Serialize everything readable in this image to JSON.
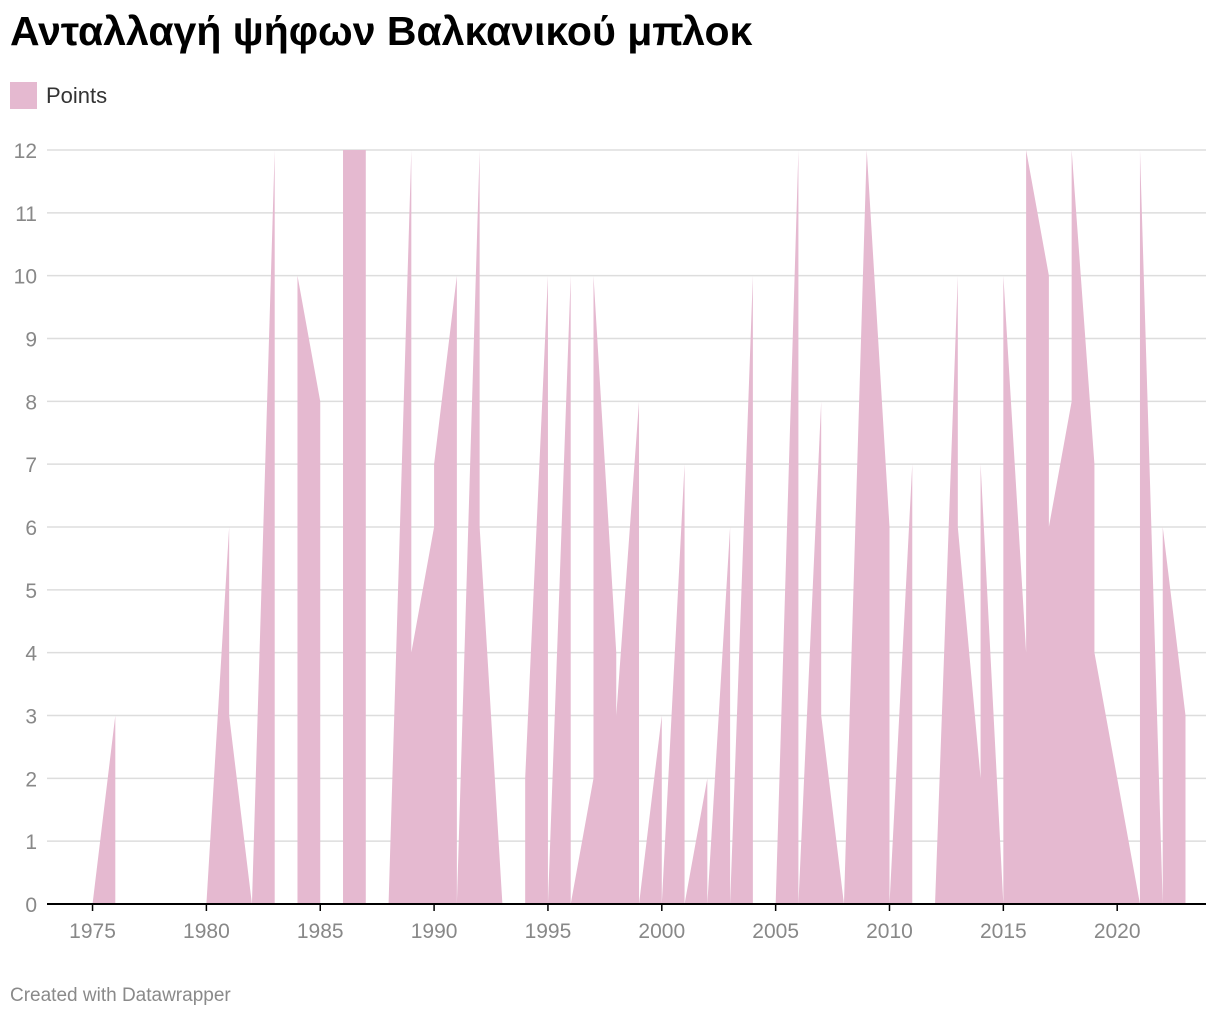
{
  "title": "Ανταλλαγή ψήφων Βαλκανικού μπλοκ",
  "footer": "Created with Datawrapper",
  "legend": {
    "label": "Points"
  },
  "colors": {
    "area": "#e5b9d0",
    "grid": "#dddddd",
    "axis": "#000000",
    "tick": "#888888"
  },
  "chart_data": {
    "type": "area",
    "title": "Ανταλλαγή ψήφων Βαλκανικού μπλοκ",
    "xlabel": "",
    "ylabel": "",
    "xlim": [
      1973,
      2023.9
    ],
    "ylim": [
      0,
      12
    ],
    "x_ticks": [
      1975,
      1980,
      1985,
      1990,
      1995,
      2000,
      2005,
      2010,
      2015,
      2020
    ],
    "y_ticks": [
      0,
      1,
      2,
      3,
      4,
      5,
      6,
      7,
      8,
      9,
      10,
      11,
      12
    ],
    "grid": true,
    "legend_position": "top-left",
    "series": [
      {
        "name": "Points",
        "points": [
          [
            1975,
            0
          ],
          [
            1976,
            3
          ],
          [
            1976,
            0
          ],
          [
            1980,
            0
          ],
          [
            1981,
            6
          ],
          [
            1981,
            3
          ],
          [
            1982,
            0
          ],
          [
            1983,
            12
          ],
          [
            1983,
            0
          ],
          [
            1984,
            0
          ],
          [
            1984,
            10
          ],
          [
            1985,
            8
          ],
          [
            1985,
            0
          ],
          [
            1986,
            0
          ],
          [
            1986,
            12
          ],
          [
            1987,
            12
          ],
          [
            1987,
            0
          ],
          [
            1988,
            0
          ],
          [
            1989,
            12
          ],
          [
            1989,
            4
          ],
          [
            1990,
            6
          ],
          [
            1990,
            7
          ],
          [
            1991,
            10
          ],
          [
            1991,
            0
          ],
          [
            1992,
            12
          ],
          [
            1992,
            6
          ],
          [
            1993,
            0
          ],
          [
            1994,
            0
          ],
          [
            1994,
            2
          ],
          [
            1995,
            10
          ],
          [
            1995,
            0
          ],
          [
            1996,
            10
          ],
          [
            1996,
            0
          ],
          [
            1997,
            2
          ],
          [
            1997,
            10
          ],
          [
            1998,
            4
          ],
          [
            1998,
            3
          ],
          [
            1999,
            8
          ],
          [
            1999,
            0
          ],
          [
            2000,
            3
          ],
          [
            2000,
            0
          ],
          [
            2001,
            7
          ],
          [
            2001,
            0
          ],
          [
            2002,
            2
          ],
          [
            2002,
            0
          ],
          [
            2003,
            6
          ],
          [
            2003,
            0
          ],
          [
            2004,
            10
          ],
          [
            2004,
            0
          ],
          [
            2005,
            0
          ],
          [
            2006,
            12
          ],
          [
            2006,
            0
          ],
          [
            2007,
            8
          ],
          [
            2007,
            3
          ],
          [
            2008,
            0
          ],
          [
            2009,
            12
          ],
          [
            2010,
            6
          ],
          [
            2010,
            0
          ],
          [
            2011,
            7
          ],
          [
            2011,
            0
          ],
          [
            2012,
            0
          ],
          [
            2013,
            10
          ],
          [
            2013,
            6
          ],
          [
            2014,
            2
          ],
          [
            2014,
            7
          ],
          [
            2015,
            0
          ],
          [
            2015,
            10
          ],
          [
            2016,
            4
          ],
          [
            2016,
            12
          ],
          [
            2017,
            10
          ],
          [
            2017,
            6
          ],
          [
            2018,
            8
          ],
          [
            2018,
            12
          ],
          [
            2019,
            7
          ],
          [
            2019,
            4
          ],
          [
            2021,
            0
          ],
          [
            2021,
            12
          ],
          [
            2022,
            0
          ],
          [
            2022,
            6
          ],
          [
            2023,
            3
          ],
          [
            2023,
            0
          ]
        ]
      }
    ]
  }
}
